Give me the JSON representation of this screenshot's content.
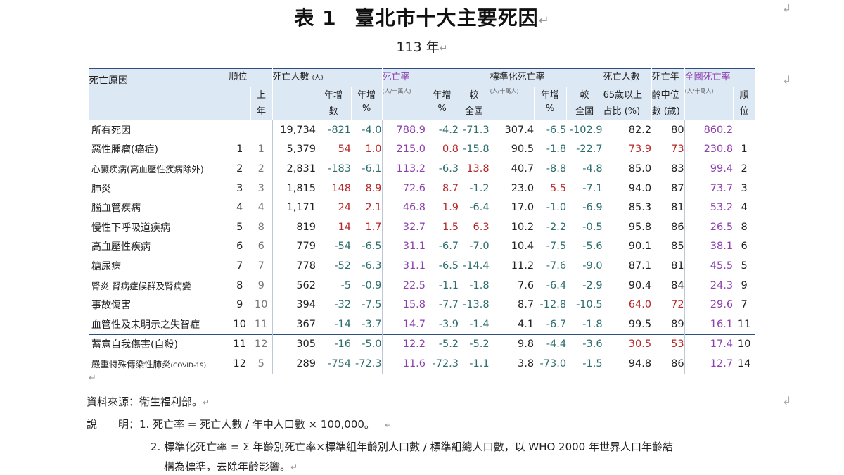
{
  "title": {
    "label": "表 1",
    "text": "臺北市十大主要死因"
  },
  "subtitle": "113 年",
  "headers": {
    "cause": "死亡原因",
    "rank": "順位",
    "prev_rank": [
      "上",
      "年"
    ],
    "deaths": "死亡人數",
    "deaths_unit": "(人)",
    "yoy_count": [
      "年增",
      "數"
    ],
    "yoy_pct": [
      "年增",
      "%"
    ],
    "rate": "死亡率",
    "rate_unit": "(人/十萬人)",
    "rate_yoy": [
      "年增",
      "%"
    ],
    "rate_cmp": [
      "較",
      "全國"
    ],
    "std_rate": "標準化死亡率",
    "std_unit": "(人/十萬人)",
    "std_yoy": [
      "年增",
      "%"
    ],
    "std_cmp": [
      "較",
      "全國"
    ],
    "over65": [
      "死亡人數",
      "65歲以上",
      "占比 (%)"
    ],
    "median_age": [
      "死亡年",
      "齡中位",
      "數 (歲)"
    ],
    "national": "全國死亡率",
    "national_unit": "(人/十萬人)",
    "national_rank": [
      "順",
      "位"
    ]
  },
  "rows": [
    {
      "cause": "所有死因",
      "rank": "",
      "prev": "",
      "deaths": "19,734",
      "yoy_n": "-821",
      "yoy_p": "-4.0",
      "rate": "788.9",
      "rate_yoy": "-4.2",
      "rate_cmp": "-71.3",
      "std": "307.4",
      "std_yoy": "-6.5",
      "std_cmp": "-102.9",
      "over65": "82.2",
      "median": "80",
      "national": "860.2",
      "nat_rank": ""
    },
    {
      "cause": "惡性腫瘤(癌症)",
      "rank": "1",
      "prev": "1",
      "deaths": "5,379",
      "yoy_n": "54",
      "yoy_p": "1.0",
      "rate": "215.0",
      "rate_yoy": "0.8",
      "rate_cmp": "-15.8",
      "std": "90.5",
      "std_yoy": "-1.8",
      "std_cmp": "-22.7",
      "over65": "73.9",
      "median": "73",
      "national": "230.8",
      "nat_rank": "1"
    },
    {
      "cause": "心臟疾病(高血壓性疾病除外)",
      "rank": "2",
      "prev": "2",
      "deaths": "2,831",
      "yoy_n": "-183",
      "yoy_p": "-6.1",
      "rate": "113.2",
      "rate_yoy": "-6.3",
      "rate_cmp": "13.8",
      "std": "40.7",
      "std_yoy": "-8.8",
      "std_cmp": "-4.8",
      "over65": "85.0",
      "median": "83",
      "national": "99.4",
      "nat_rank": "2"
    },
    {
      "cause": "肺炎",
      "rank": "3",
      "prev": "3",
      "deaths": "1,815",
      "yoy_n": "148",
      "yoy_p": "8.9",
      "rate": "72.6",
      "rate_yoy": "8.7",
      "rate_cmp": "-1.2",
      "std": "23.0",
      "std_yoy": "5.5",
      "std_cmp": "-7.1",
      "over65": "94.0",
      "median": "87",
      "national": "73.7",
      "nat_rank": "3"
    },
    {
      "cause": "腦血管疾病",
      "rank": "4",
      "prev": "4",
      "deaths": "1,171",
      "yoy_n": "24",
      "yoy_p": "2.1",
      "rate": "46.8",
      "rate_yoy": "1.9",
      "rate_cmp": "-6.4",
      "std": "17.0",
      "std_yoy": "-1.0",
      "std_cmp": "-6.9",
      "over65": "85.3",
      "median": "81",
      "national": "53.2",
      "nat_rank": "4"
    },
    {
      "cause": "慢性下呼吸道疾病",
      "rank": "5",
      "prev": "8",
      "deaths": "819",
      "yoy_n": "14",
      "yoy_p": "1.7",
      "rate": "32.7",
      "rate_yoy": "1.5",
      "rate_cmp": "6.3",
      "std": "10.2",
      "std_yoy": "-2.2",
      "std_cmp": "-0.5",
      "over65": "95.8",
      "median": "86",
      "national": "26.5",
      "nat_rank": "8"
    },
    {
      "cause": "高血壓性疾病",
      "rank": "6",
      "prev": "6",
      "deaths": "779",
      "yoy_n": "-54",
      "yoy_p": "-6.5",
      "rate": "31.1",
      "rate_yoy": "-6.7",
      "rate_cmp": "-7.0",
      "std": "10.4",
      "std_yoy": "-7.5",
      "std_cmp": "-5.6",
      "over65": "90.1",
      "median": "85",
      "national": "38.1",
      "nat_rank": "6"
    },
    {
      "cause": "糖尿病",
      "rank": "7",
      "prev": "7",
      "deaths": "778",
      "yoy_n": "-52",
      "yoy_p": "-6.3",
      "rate": "31.1",
      "rate_yoy": "-6.5",
      "rate_cmp": "-14.4",
      "std": "11.2",
      "std_yoy": "-7.6",
      "std_cmp": "-9.0",
      "over65": "87.1",
      "median": "81",
      "national": "45.5",
      "nat_rank": "5"
    },
    {
      "cause": "腎炎 腎病症候群及腎病變",
      "rank": "8",
      "prev": "9",
      "deaths": "562",
      "yoy_n": "-5",
      "yoy_p": "-0.9",
      "rate": "22.5",
      "rate_yoy": "-1.1",
      "rate_cmp": "-1.8",
      "std": "7.6",
      "std_yoy": "-6.4",
      "std_cmp": "-2.9",
      "over65": "90.4",
      "median": "84",
      "national": "24.3",
      "nat_rank": "9"
    },
    {
      "cause": "事故傷害",
      "rank": "9",
      "prev": "10",
      "deaths": "394",
      "yoy_n": "-32",
      "yoy_p": "-7.5",
      "rate": "15.8",
      "rate_yoy": "-7.7",
      "rate_cmp": "-13.8",
      "std": "8.7",
      "std_yoy": "-12.8",
      "std_cmp": "-10.5",
      "over65": "64.0",
      "median": "72",
      "national": "29.6",
      "nat_rank": "7"
    },
    {
      "cause": "血管性及未明示之失智症",
      "rank": "10",
      "prev": "11",
      "deaths": "367",
      "yoy_n": "-14",
      "yoy_p": "-3.7",
      "rate": "14.7",
      "rate_yoy": "-3.9",
      "rate_cmp": "-1.4",
      "std": "4.1",
      "std_yoy": "-6.7",
      "std_cmp": "-1.8",
      "over65": "99.5",
      "median": "89",
      "national": "16.1",
      "nat_rank": "11"
    },
    {
      "cause": "蓄意自我傷害(自殺)",
      "rank": "11",
      "prev": "12",
      "deaths": "305",
      "yoy_n": "-16",
      "yoy_p": "-5.0",
      "rate": "12.2",
      "rate_yoy": "-5.2",
      "rate_cmp": "-5.2",
      "std": "9.8",
      "std_yoy": "-4.4",
      "std_cmp": "-3.6",
      "over65": "30.5",
      "median": "53",
      "national": "17.4",
      "nat_rank": "10"
    },
    {
      "cause": "嚴重特殊傳染性肺炎",
      "cause_suffix": "(COVID-19)",
      "rank": "12",
      "prev": "5",
      "deaths": "289",
      "yoy_n": "-754",
      "yoy_p": "-72.3",
      "rate": "11.6",
      "rate_yoy": "-72.3",
      "rate_cmp": "-1.1",
      "std": "3.8",
      "std_yoy": "-73.0",
      "std_cmp": "-1.5",
      "over65": "94.8",
      "median": "86",
      "national": "12.7",
      "nat_rank": "14"
    }
  ],
  "notes": {
    "source": "資料來源：衛生福利部。",
    "explain_label": "說　　明：",
    "item1": "1. 死亡率 = 死亡人數 / 年中人口數 × 100,000。",
    "item2a": "2. 標準化死亡率 = Σ 年齡別死亡率×標準組年齡別人口數 / 標準組總人口數，以 WHO 2000 年世界人口年齡結",
    "item2b": "構為標準，去除年齡影響。"
  },
  "colors": {
    "header_bg": "#dde8f5",
    "purple": "#8d3fae",
    "positive": "#b72929",
    "negative": "#2e6d6d",
    "rule": "#2f4f7f"
  }
}
